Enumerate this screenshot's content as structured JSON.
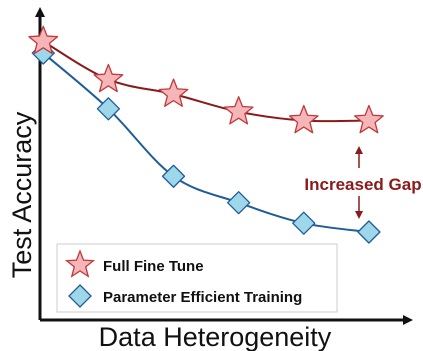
{
  "chart_data": {
    "type": "line",
    "title": "",
    "xlabel": "Data Heterogeneity",
    "ylabel": "Test Accuracy",
    "x_ticks_shown": false,
    "y_ticks_shown": false,
    "grid": false,
    "legend_position": "bottom-left",
    "x": [
      0,
      1,
      2,
      3,
      4,
      5
    ],
    "xlim": [
      -0.05,
      5.6
    ],
    "ylim": [
      0.0,
      1.05
    ],
    "series": [
      {
        "name": "Full Fine Tune",
        "marker": "star",
        "line_color": "#8b1a1a",
        "marker_fill": "#f4b6b8",
        "marker_stroke": "#c0393b",
        "values": [
          0.95,
          0.82,
          0.77,
          0.71,
          0.68,
          0.68
        ]
      },
      {
        "name": "Parameter Efficient Training",
        "marker": "diamond",
        "line_color": "#1f5d99",
        "marker_fill": "#9ed7ea",
        "marker_stroke": "#1f5d99",
        "values": [
          0.91,
          0.72,
          0.49,
          0.4,
          0.33,
          0.3
        ]
      }
    ],
    "annotation": {
      "text": "Increased Gap",
      "color": "#8b1a1a"
    }
  }
}
